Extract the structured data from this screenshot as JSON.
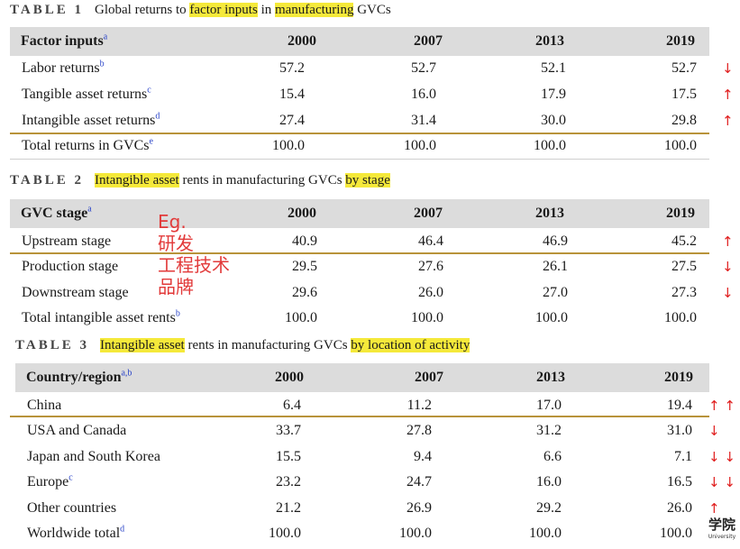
{
  "table1": {
    "num": "TABLE 1",
    "title_parts": [
      "Global returns to ",
      "factor inputs",
      " in ",
      "manufacturing",
      " GVCs"
    ],
    "header": {
      "label": "Factor inputs",
      "sup": "a",
      "years": [
        "2000",
        "2007",
        "2013",
        "2019"
      ]
    },
    "rows": [
      {
        "label": "Labor returns",
        "sup": "b",
        "values": [
          "57.2",
          "52.7",
          "52.1",
          "52.7"
        ],
        "arrow": "↓"
      },
      {
        "label": "Tangible asset returns",
        "sup": "c",
        "values": [
          "15.4",
          "16.0",
          "17.9",
          "17.5"
        ],
        "arrow": "↑"
      },
      {
        "label": "Intangible asset returns",
        "sup": "d",
        "values": [
          "27.4",
          "31.4",
          "30.0",
          "29.8"
        ],
        "arrow": "↑"
      },
      {
        "label": "Total returns in GVCs",
        "sup": "e",
        "values": [
          "100.0",
          "100.0",
          "100.0",
          "100.0"
        ],
        "arrow": ""
      }
    ]
  },
  "table2": {
    "num": "TABLE 2",
    "title_parts": [
      "Intangible asset",
      " rents in manufacturing GVCs ",
      "by stage"
    ],
    "header": {
      "label": "GVC stage",
      "sup": "a",
      "years": [
        "2000",
        "2007",
        "2013",
        "2019"
      ]
    },
    "rows": [
      {
        "label": "Upstream stage",
        "sup": "",
        "values": [
          "40.9",
          "46.4",
          "46.9",
          "45.2"
        ],
        "arrow": "↑"
      },
      {
        "label": "Production stage",
        "sup": "",
        "values": [
          "29.5",
          "27.6",
          "26.1",
          "27.5"
        ],
        "arrow": "↓"
      },
      {
        "label": "Downstream stage",
        "sup": "",
        "values": [
          "29.6",
          "26.0",
          "27.0",
          "27.3"
        ],
        "arrow": "↓"
      },
      {
        "label": "Total intangible asset rents",
        "sup": "b",
        "values": [
          "100.0",
          "100.0",
          "100.0",
          "100.0"
        ],
        "arrow": ""
      }
    ]
  },
  "table3": {
    "num": "TABLE 3",
    "title_parts": [
      "Intangible asset",
      " rents in manufacturing GVCs ",
      "by location of activity"
    ],
    "header": {
      "label": "Country/region",
      "sup": "a,b",
      "years": [
        "2000",
        "2007",
        "2013",
        "2019"
      ]
    },
    "rows": [
      {
        "label": "China",
        "sup": "",
        "values": [
          "6.4",
          "11.2",
          "17.0",
          "19.4"
        ],
        "arrow": "↑ ↑"
      },
      {
        "label": "USA and Canada",
        "sup": "",
        "values": [
          "33.7",
          "27.8",
          "31.2",
          "31.0"
        ],
        "arrow": "↓"
      },
      {
        "label": "Japan and South Korea",
        "sup": "",
        "values": [
          "15.5",
          "9.4",
          "6.6",
          "7.1"
        ],
        "arrow": "↓ ↓"
      },
      {
        "label": "Europe",
        "sup": "c",
        "values": [
          "23.2",
          "24.7",
          "16.0",
          "16.5"
        ],
        "arrow": "↓ ↓"
      },
      {
        "label": "Other countries",
        "sup": "",
        "values": [
          "21.2",
          "26.9",
          "29.2",
          "26.0"
        ],
        "arrow": "↑"
      },
      {
        "label": "Worldwide total",
        "sup": "d",
        "values": [
          "100.0",
          "100.0",
          "100.0",
          "100.0"
        ],
        "arrow": ""
      }
    ]
  },
  "annotation": {
    "lines": [
      "Eg.",
      "研发",
      "工程技术",
      "品牌"
    ],
    "color": "#e23a3a"
  },
  "watermark": {
    "big": "学院",
    "small": "University"
  },
  "colors": {
    "highlight": "#f5e93a",
    "header_bg": "#dcdcdc",
    "gold_rule": "#b8933a",
    "arrow": "#e02020"
  }
}
